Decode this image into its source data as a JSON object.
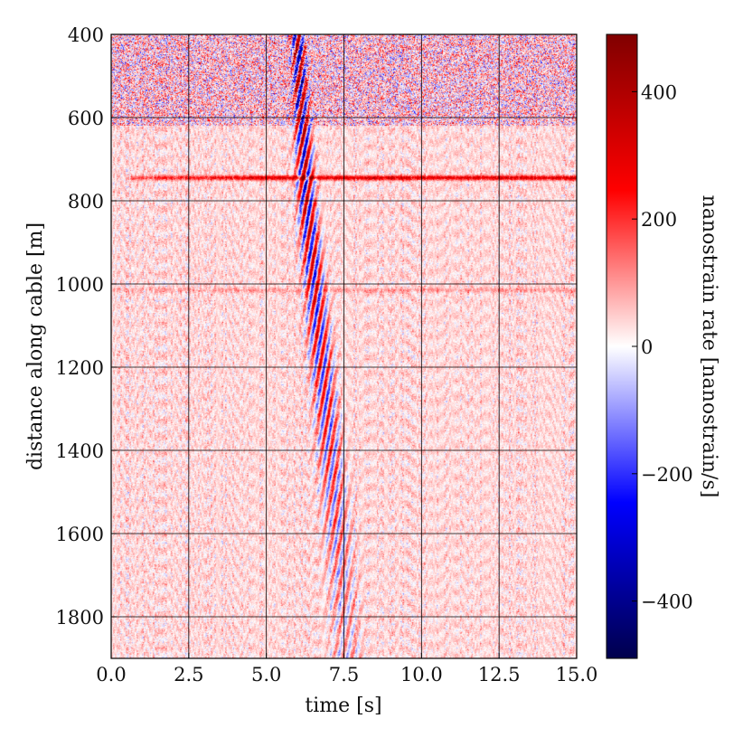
{
  "chart_data": {
    "type": "heatmap",
    "title": "",
    "xlabel": "time [s]",
    "ylabel": "distance along cable [m]",
    "xlim": [
      0.0,
      15.0
    ],
    "ylim": [
      400,
      1900
    ],
    "y_inverted": true,
    "xticks": [
      0.0,
      2.5,
      5.0,
      7.5,
      10.0,
      12.5,
      15.0
    ],
    "xtick_labels": [
      "0.0",
      "2.5",
      "5.0",
      "7.5",
      "10.0",
      "12.5",
      "15.0"
    ],
    "yticks": [
      400,
      600,
      800,
      1000,
      1200,
      1400,
      1600,
      1800
    ],
    "ytick_labels": [
      "400",
      "600",
      "800",
      "1000",
      "1200",
      "1400",
      "1600",
      "1800"
    ],
    "grid": true,
    "colorbar": {
      "label": "nanostrain rate [nanostrain/s]",
      "colormap": "seismic",
      "range": [
        -490,
        490
      ],
      "ticks": [
        400,
        200,
        0,
        -200,
        -400
      ],
      "tick_labels": [
        "400",
        "200",
        "0",
        "−200",
        "−400"
      ],
      "colors": {
        "max": "#800000",
        "pos": "#ff0000",
        "zero": "#ffffff",
        "neg": "#0000ff",
        "min": "#00004c"
      }
    },
    "features": [
      {
        "kind": "seismic_arrival",
        "description_points": [
          [
            6.0,
            400
          ],
          [
            6.3,
            800
          ],
          [
            6.8,
            1200
          ],
          [
            7.3,
            1600
          ],
          [
            7.6,
            1900
          ]
        ],
        "polarity": "mixed",
        "peak_amplitude": 450
      },
      {
        "kind": "horizontal_band",
        "distance_m": 745,
        "time_range": [
          0.6,
          15.0
        ],
        "polarity": "positive",
        "amplitude": 280
      },
      {
        "kind": "horizontal_band",
        "distance_m": 1015,
        "time_range": [
          0.0,
          15.0
        ],
        "polarity": "positive",
        "amplitude": 60
      },
      {
        "kind": "noisy_zone",
        "distance_range": [
          400,
          620
        ],
        "time_range": [
          0.0,
          15.0
        ],
        "amplitude": 180
      }
    ],
    "background_noise_amplitude": 70
  }
}
